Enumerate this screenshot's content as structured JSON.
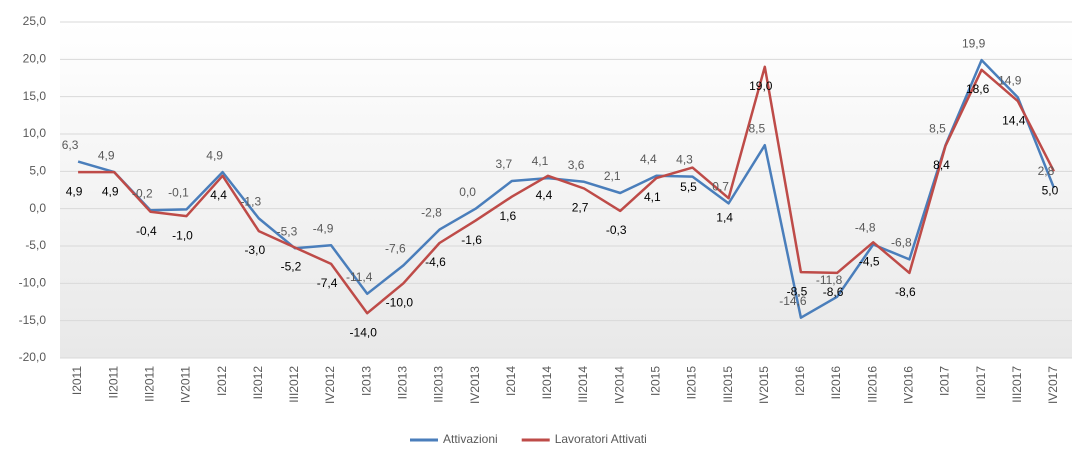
{
  "chart_data": {
    "type": "line",
    "categories": [
      "I2011",
      "II2011",
      "III2011",
      "IV2011",
      "I2012",
      "II2012",
      "III2012",
      "IV2012",
      "I2013",
      "II2013",
      "III2013",
      "IV2013",
      "I2014",
      "II2014",
      "III2014",
      "IV2014",
      "I2015",
      "II2015",
      "III2015",
      "IV2015",
      "I2016",
      "II2016",
      "III2016",
      "IV2016",
      "I2017",
      "II2017",
      "III2017",
      "IV2017"
    ],
    "series": [
      {
        "name": "Attivazioni",
        "color": "#4a7ebb",
        "values": [
          6.3,
          4.9,
          -0.2,
          -0.1,
          4.9,
          -1.3,
          -5.3,
          -4.9,
          -11.4,
          -7.6,
          -2.8,
          0.0,
          3.7,
          4.1,
          3.6,
          2.1,
          4.4,
          4.3,
          0.7,
          8.5,
          -14.6,
          -11.8,
          -4.8,
          -6.8,
          8.5,
          19.9,
          14.9,
          2.8
        ],
        "value_labels": [
          "6,3",
          "4,9",
          "-0,2",
          "-0,1",
          "4,9",
          "-1,3",
          "-5,3",
          "-4,9",
          "-11,4",
          "-7,6",
          "-2,8",
          "0,0",
          "3,7",
          "4,1",
          "3,6",
          "2,1",
          "4,4",
          "4,3",
          "0,7",
          "8,5",
          "-14,6",
          "-11,8",
          "-4,8",
          "-6,8",
          "8,5",
          "19,9",
          "14,9",
          "2,8"
        ]
      },
      {
        "name": "Lavoratori Attivati",
        "color": "#be4b48",
        "values": [
          4.9,
          4.9,
          -0.4,
          -1.0,
          4.4,
          -3.0,
          -5.2,
          -7.4,
          -14.0,
          -10.0,
          -4.6,
          -1.6,
          1.6,
          4.4,
          2.7,
          -0.3,
          4.1,
          5.5,
          1.4,
          19.0,
          -8.5,
          -8.6,
          -4.5,
          -8.6,
          8.4,
          18.6,
          14.4,
          5.0
        ],
        "value_labels": [
          "4,9",
          "4,9",
          "-0,4",
          "-1,0",
          "4,4",
          "-3,0",
          "-5,2",
          "-7,4",
          "-14,0",
          "-10,0",
          "-4,6",
          "-1,6",
          "1,6",
          "4,4",
          "2,7",
          "-0,3",
          "4,1",
          "5,5",
          "1,4",
          "19,0",
          "-8,5",
          "-8,6",
          "-4,5",
          "-8,6",
          "8,4",
          "18,6",
          "14,4",
          "5,0"
        ]
      }
    ],
    "ylim": [
      -20,
      25
    ],
    "yticks": [
      {
        "value": -20,
        "label": "-20,0"
      },
      {
        "value": -15,
        "label": "-15,0"
      },
      {
        "value": -10,
        "label": "-10,0"
      },
      {
        "value": -5,
        "label": "-5,0"
      },
      {
        "value": 0,
        "label": "0,0"
      },
      {
        "value": 5,
        "label": "5,0"
      },
      {
        "value": 10,
        "label": "10,0"
      },
      {
        "value": 15,
        "label": "15,0"
      },
      {
        "value": 20,
        "label": "20,0"
      },
      {
        "value": 25,
        "label": "25,0"
      }
    ],
    "grid": true,
    "legend": "bottom"
  }
}
